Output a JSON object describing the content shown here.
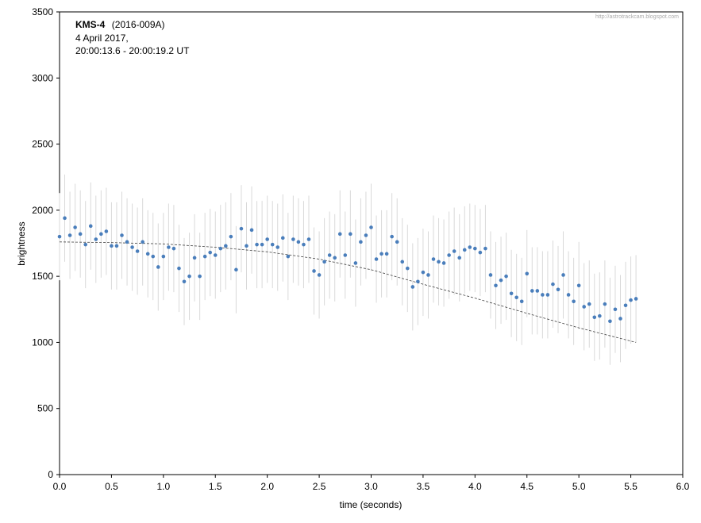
{
  "chart_data": {
    "type": "scatter",
    "title_object": "KMS-4",
    "title_id": "(2016-009A)",
    "subtitle_date": "4 April 2017,",
    "subtitle_time": "20:00:13.6 - 20:00:19.2 UT",
    "watermark": "http://astrotrackcam.blogspot.com",
    "xlabel": "time (seconds)",
    "ylabel": "brightness",
    "xlim": [
      0,
      6
    ],
    "ylim": [
      0,
      3500
    ],
    "xticks": [
      "0.0",
      "0.5",
      "1.0",
      "1.5",
      "2.0",
      "2.5",
      "3.0",
      "3.5",
      "4.0",
      "4.5",
      "5.0",
      "5.5",
      "6.0"
    ],
    "yticks": [
      "0",
      "500",
      "1000",
      "1500",
      "2000",
      "2500",
      "3000",
      "3500"
    ],
    "grid": false,
    "error_bar_halfwidth": 330,
    "trend_points": [
      [
        0,
        1760
      ],
      [
        0.5,
        1755
      ],
      [
        1.0,
        1745
      ],
      [
        1.5,
        1720
      ],
      [
        2.0,
        1685
      ],
      [
        2.5,
        1630
      ],
      [
        3.0,
        1550
      ],
      [
        3.5,
        1440
      ],
      [
        4.0,
        1335
      ],
      [
        4.5,
        1220
      ],
      [
        5.0,
        1110
      ],
      [
        5.55,
        1000
      ]
    ],
    "colors": {
      "points": "#4a7ebb",
      "error_bars": "#d9d9d9",
      "trend": "#404040"
    },
    "x": [
      0.0,
      0.05,
      0.1,
      0.15,
      0.2,
      0.25,
      0.3,
      0.35,
      0.4,
      0.45,
      0.5,
      0.55,
      0.6,
      0.65,
      0.7,
      0.75,
      0.8,
      0.85,
      0.9,
      0.95,
      1.0,
      1.05,
      1.1,
      1.15,
      1.2,
      1.25,
      1.3,
      1.35,
      1.4,
      1.45,
      1.5,
      1.55,
      1.6,
      1.65,
      1.7,
      1.75,
      1.8,
      1.85,
      1.9,
      1.95,
      2.0,
      2.05,
      2.1,
      2.15,
      2.2,
      2.25,
      2.3,
      2.35,
      2.4,
      2.45,
      2.5,
      2.55,
      2.6,
      2.65,
      2.7,
      2.75,
      2.8,
      2.85,
      2.9,
      2.95,
      3.0,
      3.05,
      3.1,
      3.15,
      3.2,
      3.25,
      3.3,
      3.35,
      3.4,
      3.45,
      3.5,
      3.55,
      3.6,
      3.65,
      3.7,
      3.75,
      3.8,
      3.85,
      3.9,
      3.95,
      4.0,
      4.05,
      4.1,
      4.15,
      4.2,
      4.25,
      4.3,
      4.35,
      4.4,
      4.45,
      4.5,
      4.55,
      4.6,
      4.65,
      4.7,
      4.75,
      4.8,
      4.85,
      4.9,
      4.95,
      5.0,
      5.05,
      5.1,
      5.15,
      5.2,
      5.25,
      5.3,
      5.35,
      5.4,
      5.45,
      5.5,
      5.55
    ],
    "y": [
      1800,
      1940,
      1810,
      1870,
      1820,
      1740,
      1880,
      1780,
      1820,
      1840,
      1730,
      1730,
      1810,
      1760,
      1720,
      1690,
      1760,
      1670,
      1650,
      1570,
      1650,
      1720,
      1710,
      1560,
      1460,
      1500,
      1640,
      1500,
      1650,
      1680,
      1660,
      1710,
      1730,
      1800,
      1550,
      1860,
      1730,
      1850,
      1740,
      1740,
      1780,
      1740,
      1720,
      1790,
      1650,
      1780,
      1760,
      1740,
      1780,
      1540,
      1510,
      1610,
      1660,
      1640,
      1820,
      1660,
      1820,
      1600,
      1760,
      1810,
      1870,
      1630,
      1670,
      1670,
      1800,
      1760,
      1610,
      1560,
      1420,
      1460,
      1530,
      1510,
      1630,
      1610,
      1600,
      1660,
      1690,
      1640,
      1700,
      1720,
      1710,
      1680,
      1710,
      1510,
      1430,
      1470,
      1500,
      1370,
      1340,
      1310,
      1520,
      1390,
      1390,
      1360,
      1360,
      1440,
      1400,
      1510,
      1360,
      1310,
      1430,
      1270,
      1290,
      1190,
      1200,
      1290,
      1160,
      1250,
      1180,
      1280,
      1320,
      1330
    ]
  }
}
